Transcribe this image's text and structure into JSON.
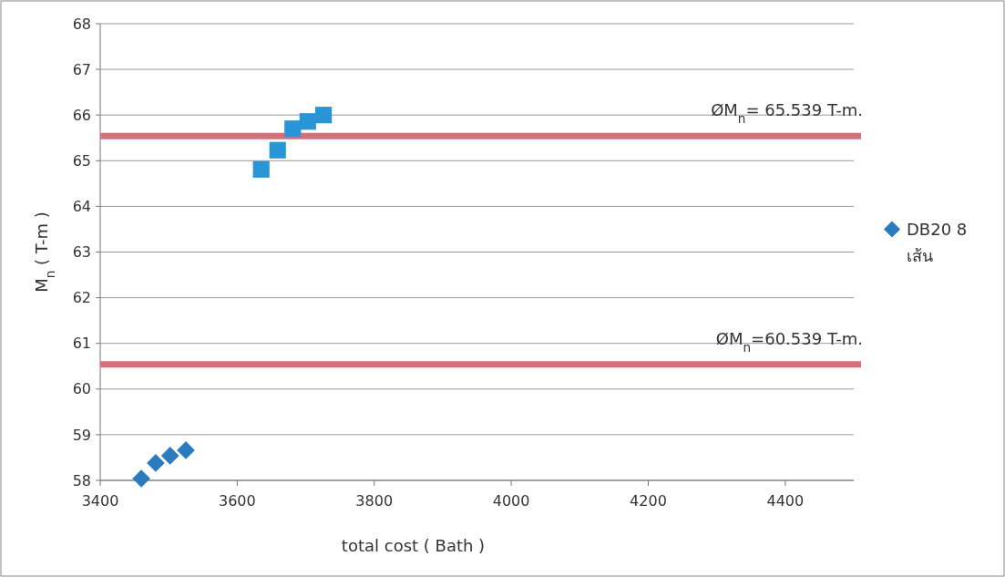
{
  "chart_data": {
    "type": "scatter",
    "xlabel": "total cost ( Bath )",
    "ylabel": "M$_{n}$ ( T-m )",
    "xlim": [
      3400,
      4500
    ],
    "xticks": [
      3400,
      3600,
      3800,
      4000,
      4200,
      4400
    ],
    "ylim": [
      58,
      68
    ],
    "yticks": [
      58,
      59,
      60,
      61,
      62,
      63,
      64,
      65,
      66,
      67,
      68
    ],
    "grid": "y",
    "legend": "right",
    "series": [
      {
        "name": "DB20 8 เส้น",
        "color": "#2b7bbf",
        "marker": "diamond",
        "x": [
          3460,
          3481,
          3502,
          3525
        ],
        "values": [
          58.04,
          58.38,
          58.54,
          58.66
        ]
      },
      {
        "color": "#2a95d4",
        "marker": "square",
        "x": [
          3635,
          3659,
          3681,
          3703,
          3726
        ],
        "values": [
          64.81,
          65.23,
          65.7,
          65.86,
          66.0
        ]
      }
    ],
    "ref_lines": [
      {
        "axis": "y",
        "value": 65.539,
        "label": "ØM$_{n}$= 65.539 T-m.",
        "color": "#d4727a"
      },
      {
        "axis": "y",
        "value": 60.539,
        "label": "ØM$_{n}$=60.539 T-m.",
        "color": "#d4727a"
      }
    ]
  }
}
